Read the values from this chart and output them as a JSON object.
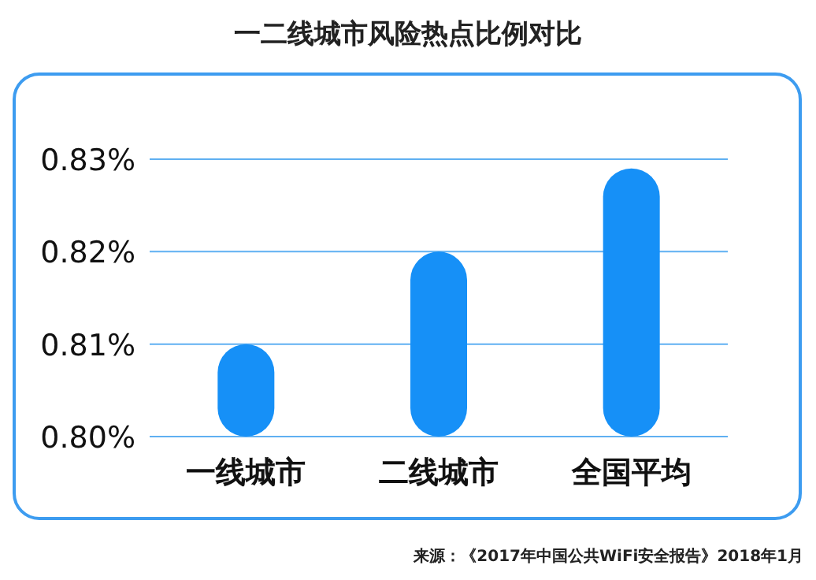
{
  "chart_data": {
    "type": "bar",
    "title": "一二线城市风险热点比例对比",
    "categories": [
      "一线城市",
      "二线城市",
      "全国平均"
    ],
    "values": [
      0.81,
      0.82,
      0.829
    ],
    "color": "#1690f7",
    "ylim": [
      0.8,
      0.83
    ],
    "yticks": [
      {
        "value": 0.8,
        "label": "0.80%"
      },
      {
        "value": 0.81,
        "label": "0.81%"
      },
      {
        "value": 0.82,
        "label": "0.82%"
      },
      {
        "value": 0.83,
        "label": "0.83%"
      }
    ],
    "grid": "y",
    "annotations": [
      "来源：《2017年中国公共WiFi安全报告》2018年1月"
    ]
  }
}
